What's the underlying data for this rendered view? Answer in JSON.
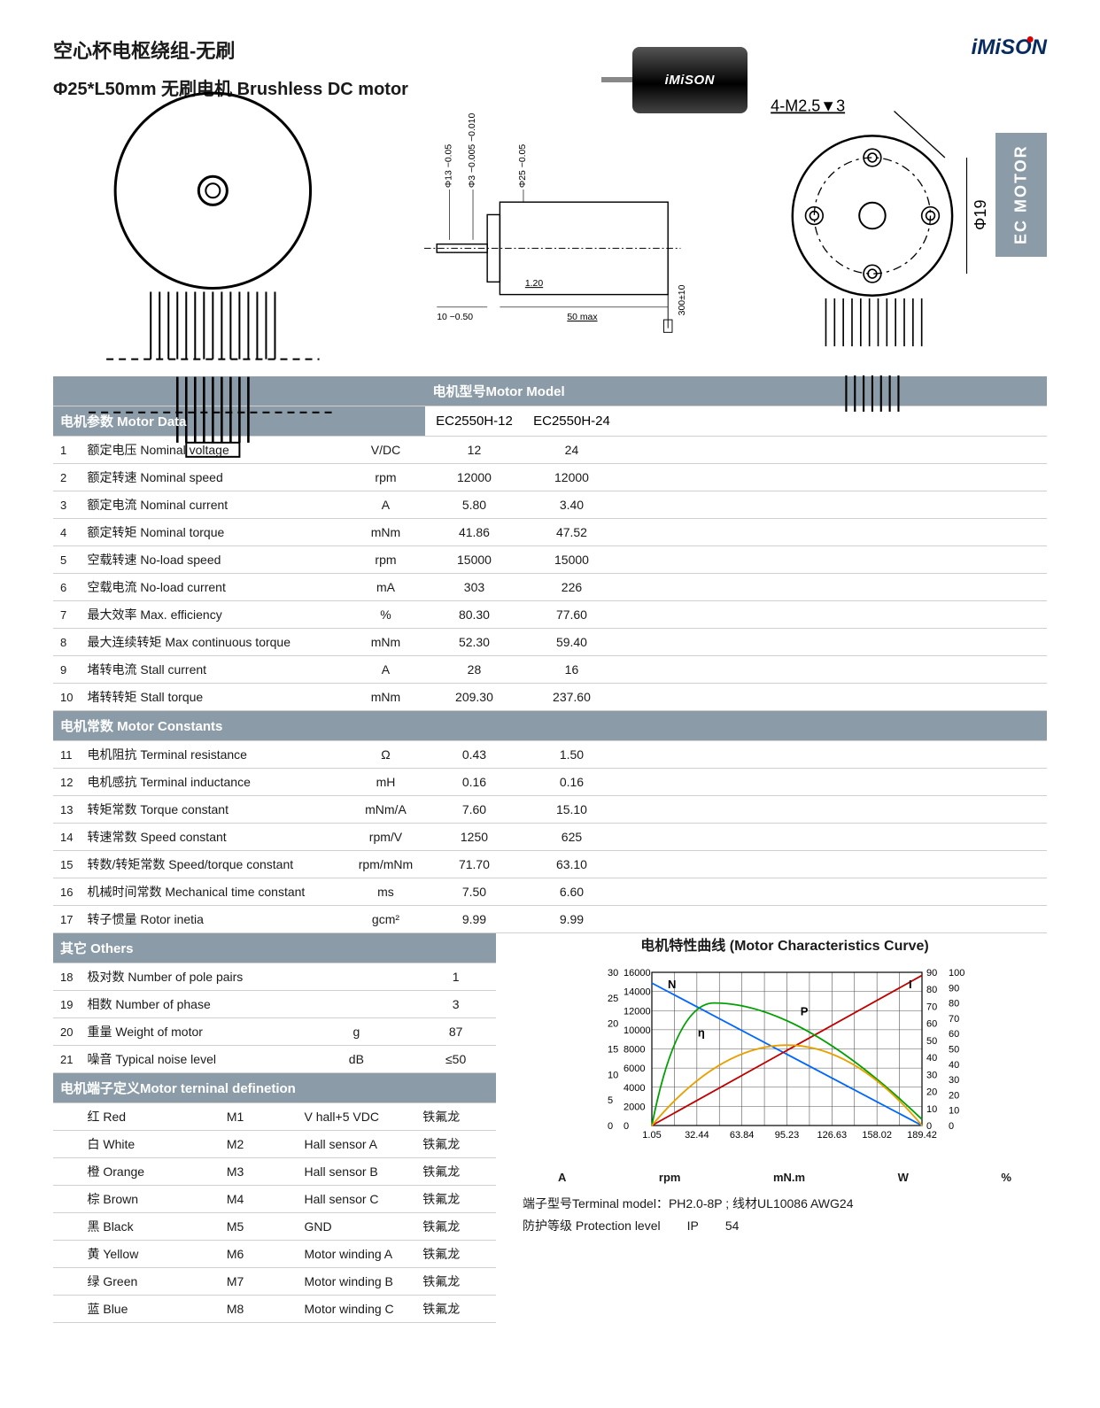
{
  "header": {
    "title1": "空心杯电枢绕组-无刷",
    "title2": "Φ25*L50mm 无刷电机 Brushless DC motor",
    "logo_text": "iMiSON",
    "sidebar": "EC MOTOR"
  },
  "drawing_labels": {
    "d1": "Φ13 −0.05",
    "d2": "Φ3 −0.005 −0.010",
    "d3": "Φ25 −0.05",
    "d4": "4-M2.5▼3",
    "d5": "Φ19",
    "len1": "10 −0.50",
    "len2": "1.20",
    "len3": "50 max",
    "len4": "300±10"
  },
  "section_headers": {
    "motor_model": "电机型号Motor Model",
    "motor_data": "电机参数 Motor Data",
    "motor_constants": "电机常数 Motor Constants",
    "others": "其它 Others",
    "terminal": "电机端子定义Motor terninal definetion",
    "curve": "电机特性曲线 (Motor Characteristics Curve)"
  },
  "models": [
    "EC2550H-12",
    "EC2550H-24"
  ],
  "motor_data": [
    {
      "n": "1",
      "p": "额定电压 Nominal voltage",
      "u": "V/DC",
      "v": [
        "12",
        "24"
      ]
    },
    {
      "n": "2",
      "p": "额定转速 Nominal speed",
      "u": "rpm",
      "v": [
        "12000",
        "12000"
      ]
    },
    {
      "n": "3",
      "p": "额定电流 Nominal current",
      "u": "A",
      "v": [
        "5.80",
        "3.40"
      ]
    },
    {
      "n": "4",
      "p": "额定转矩 Nominal torque",
      "u": "mNm",
      "v": [
        "41.86",
        "47.52"
      ]
    },
    {
      "n": "5",
      "p": "空载转速 No-load speed",
      "u": "rpm",
      "v": [
        "15000",
        "15000"
      ]
    },
    {
      "n": "6",
      "p": "空载电流 No-load current",
      "u": "mA",
      "v": [
        "303",
        "226"
      ]
    },
    {
      "n": "7",
      "p": "最大效率 Max. efficiency",
      "u": "%",
      "v": [
        "80.30",
        "77.60"
      ]
    },
    {
      "n": "8",
      "p": "最大连续转矩 Max continuous torque",
      "u": "mNm",
      "v": [
        "52.30",
        "59.40"
      ]
    },
    {
      "n": "9",
      "p": "堵转电流 Stall current",
      "u": "A",
      "v": [
        "28",
        "16"
      ]
    },
    {
      "n": "10",
      "p": "堵转转矩 Stall torque",
      "u": "mNm",
      "v": [
        "209.30",
        "237.60"
      ]
    }
  ],
  "motor_constants": [
    {
      "n": "11",
      "p": "电机阻抗 Terminal resistance",
      "u": "Ω",
      "v": [
        "0.43",
        "1.50"
      ]
    },
    {
      "n": "12",
      "p": "电机感抗 Terminal inductance",
      "u": "mH",
      "v": [
        "0.16",
        "0.16"
      ]
    },
    {
      "n": "13",
      "p": "转矩常数 Torque constant",
      "u": "mNm/A",
      "v": [
        "7.60",
        "15.10"
      ]
    },
    {
      "n": "14",
      "p": "转速常数 Speed constant",
      "u": "rpm/V",
      "v": [
        "1250",
        "625"
      ]
    },
    {
      "n": "15",
      "p": "转数/转矩常数 Speed/torque constant",
      "u": "rpm/mNm",
      "v": [
        "71.70",
        "63.10"
      ]
    },
    {
      "n": "16",
      "p": "机械时间常数 Mechanical time constant",
      "u": "ms",
      "v": [
        "7.50",
        "6.60"
      ]
    },
    {
      "n": "17",
      "p": "转子惯量 Rotor inetia",
      "u": "gcm²",
      "v": [
        "9.99",
        "9.99"
      ]
    }
  ],
  "others": [
    {
      "n": "18",
      "p": "极对数 Number of pole pairs",
      "u": "",
      "v": [
        "1"
      ]
    },
    {
      "n": "19",
      "p": "相数 Number of phase",
      "u": "",
      "v": [
        "3"
      ]
    },
    {
      "n": "20",
      "p": "重量 Weight of motor",
      "u": "g",
      "v": [
        "87"
      ]
    },
    {
      "n": "21",
      "p": "噪音 Typical noise level",
      "u": "dB",
      "v": [
        "≤50"
      ]
    }
  ],
  "terminals": [
    {
      "c": "红 Red",
      "m": "M1",
      "f": "V hall+5 VDC",
      "t": "铁氟龙"
    },
    {
      "c": "白 White",
      "m": "M2",
      "f": "Hall sensor A",
      "t": "铁氟龙"
    },
    {
      "c": "橙 Orange",
      "m": "M3",
      "f": "Hall sensor B",
      "t": "铁氟龙"
    },
    {
      "c": "棕 Brown",
      "m": "M4",
      "f": "Hall sensor C",
      "t": "铁氟龙"
    },
    {
      "c": "黑 Black",
      "m": "M5",
      "f": "GND",
      "t": "铁氟龙"
    },
    {
      "c": "黄 Yellow",
      "m": "M6",
      "f": "Motor winding A",
      "t": "铁氟龙"
    },
    {
      "c": "绿 Green",
      "m": "M7",
      "f": "Motor winding B",
      "t": "铁氟龙"
    },
    {
      "c": "蓝 Blue",
      "m": "M8",
      "f": "Motor winding C",
      "t": "铁氟龙"
    }
  ],
  "chart": {
    "x_ticks": [
      "1.05",
      "32.44",
      "63.84",
      "95.23",
      "126.63",
      "158.02",
      "189.42"
    ],
    "y_left1": [
      "30",
      "25",
      "20",
      "15",
      "10",
      "5",
      "0"
    ],
    "y_left2": [
      "16000",
      "14000",
      "12000",
      "10000",
      "8000",
      "6000",
      "4000",
      "2000",
      "0"
    ],
    "y_right1": [
      "90",
      "80",
      "70",
      "60",
      "50",
      "40",
      "30",
      "20",
      "10",
      "0"
    ],
    "y_right2": [
      "100",
      "90",
      "80",
      "70",
      "60",
      "50",
      "40",
      "30",
      "20",
      "10",
      "0"
    ],
    "labels": {
      "A": "A",
      "rpm": "rpm",
      "mNm": "mN.m",
      "W": "W",
      "pct": "%"
    },
    "series_labels": {
      "N": "N",
      "P": "P",
      "eta": "η",
      "I": "I"
    },
    "colors": {
      "N": "#0066ff",
      "I": "#c00000",
      "eta": "#00a000",
      "P": "#e8a000",
      "grid": "#555"
    }
  },
  "footer": {
    "terminal_model_label": "端子型号Terminal model：",
    "terminal_model_value": "PH2.0-8P ; 线材UL10086 AWG24",
    "protection_label": "防护等级 Protection level",
    "protection_key": "IP",
    "protection_value": "54"
  }
}
